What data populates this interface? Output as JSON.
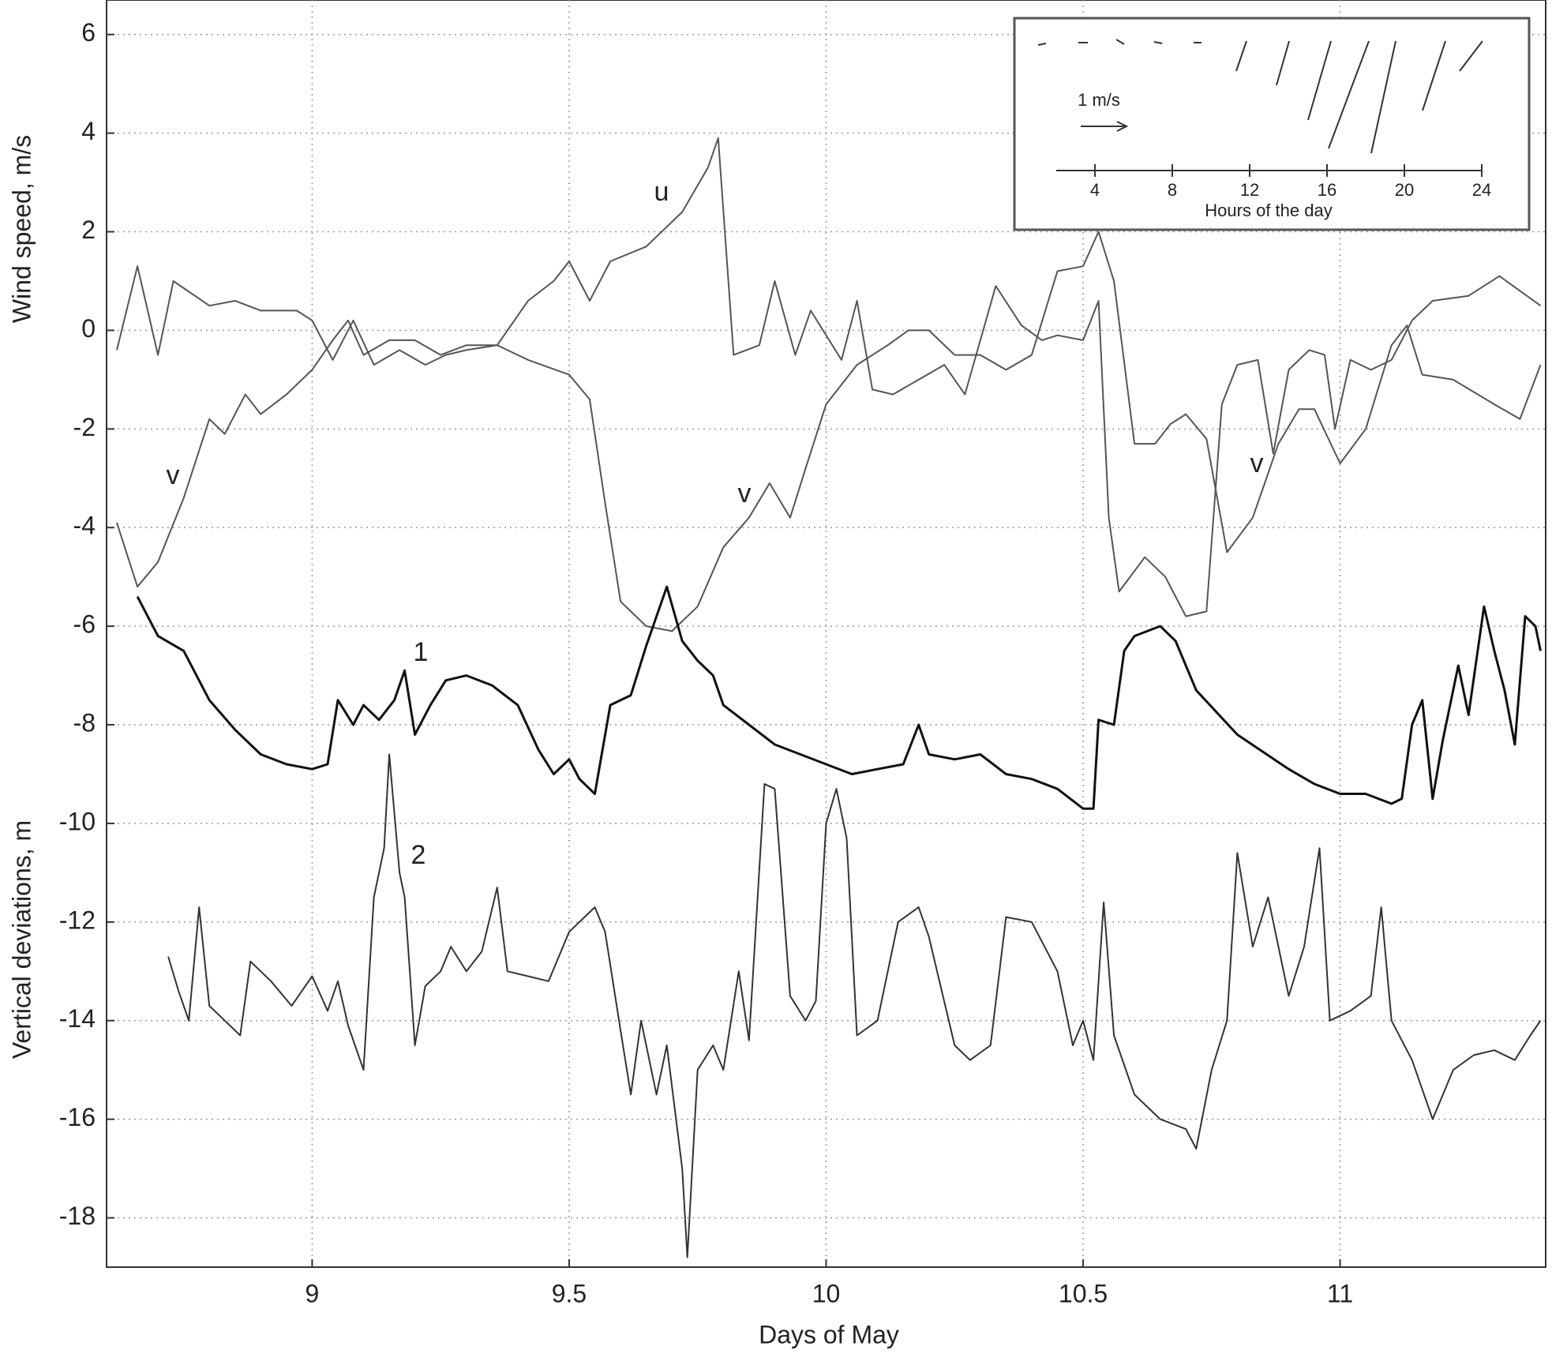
{
  "chart_data": {
    "type": "line",
    "xlabel": "Days of May",
    "ylabels": [
      "Wind speed, m/s",
      "Vertical deviations, m"
    ],
    "xlim": [
      8.6,
      11.4
    ],
    "ylim": [
      -19,
      6.7
    ],
    "xticks": [
      9,
      9.5,
      10,
      10.5,
      11
    ],
    "yticks": [
      6,
      4,
      2,
      0,
      -2,
      -4,
      -6,
      -8,
      -10,
      -12,
      -14,
      -16,
      -18
    ],
    "grid": true,
    "series": [
      {
        "name": "u",
        "color": "#555555",
        "x": [
          8.62,
          8.66,
          8.7,
          8.73,
          8.8,
          8.85,
          8.9,
          8.97,
          9.0,
          9.04,
          9.08,
          9.12,
          9.17,
          9.22,
          9.26,
          9.3,
          9.36,
          9.42,
          9.47,
          9.5,
          9.54,
          9.58,
          9.65,
          9.72,
          9.77,
          9.79,
          9.82,
          9.87,
          9.9,
          9.94,
          9.97,
          10.0,
          10.03,
          10.06,
          10.09,
          10.13,
          10.18,
          10.23,
          10.27,
          10.33,
          10.38,
          10.42,
          10.45,
          10.5,
          10.53,
          10.55,
          10.57,
          10.62,
          10.66,
          10.7,
          10.74,
          10.77,
          10.8,
          10.84,
          10.87,
          10.9,
          10.94,
          10.97,
          10.99,
          11.02,
          11.06,
          11.1,
          11.14,
          11.18,
          11.25,
          11.31,
          11.39
        ],
        "values": [
          -0.4,
          1.3,
          -0.5,
          1.0,
          0.5,
          0.6,
          0.4,
          0.4,
          0.2,
          -0.6,
          0.2,
          -0.7,
          -0.4,
          -0.7,
          -0.5,
          -0.4,
          -0.3,
          0.6,
          1.0,
          1.4,
          0.6,
          1.4,
          1.7,
          2.4,
          3.3,
          3.9,
          -0.5,
          -0.3,
          1.0,
          -0.5,
          0.4,
          -0.1,
          -0.6,
          0.6,
          -1.2,
          -1.3,
          -1.0,
          -0.7,
          -1.3,
          0.9,
          0.1,
          -0.2,
          -0.1,
          -0.2,
          0.6,
          -3.8,
          -5.3,
          -4.6,
          -5.0,
          -5.8,
          -5.7,
          -1.5,
          -0.7,
          -0.6,
          -2.5,
          -0.8,
          -0.4,
          -0.5,
          -2.0,
          -0.6,
          -0.8,
          -0.6,
          0.2,
          0.6,
          0.7,
          1.1,
          0.5
        ]
      },
      {
        "name": "v",
        "color": "#555555",
        "x": [
          8.62,
          8.66,
          8.7,
          8.75,
          8.8,
          8.83,
          8.87,
          8.9,
          8.95,
          9.0,
          9.04,
          9.07,
          9.1,
          9.15,
          9.2,
          9.25,
          9.3,
          9.36,
          9.42,
          9.5,
          9.54,
          9.57,
          9.6,
          9.65,
          9.7,
          9.75,
          9.8,
          9.85,
          9.89,
          9.93,
          9.96,
          10.0,
          10.06,
          10.12,
          10.16,
          10.2,
          10.25,
          10.3,
          10.35,
          10.4,
          10.45,
          10.5,
          10.53,
          10.56,
          10.6,
          10.64,
          10.67,
          10.7,
          10.74,
          10.78,
          10.83,
          10.88,
          10.92,
          10.95,
          11.0,
          11.05,
          11.1,
          11.13,
          11.16,
          11.22,
          11.3,
          11.35,
          11.39
        ],
        "values": [
          -3.9,
          -5.2,
          -4.7,
          -3.4,
          -1.8,
          -2.1,
          -1.3,
          -1.7,
          -1.3,
          -0.8,
          -0.2,
          0.2,
          -0.5,
          -0.2,
          -0.2,
          -0.5,
          -0.3,
          -0.3,
          -0.6,
          -0.9,
          -1.4,
          -3.5,
          -5.5,
          -6.0,
          -6.1,
          -5.6,
          -4.4,
          -3.8,
          -3.1,
          -3.8,
          -2.8,
          -1.5,
          -0.7,
          -0.3,
          0.0,
          0.0,
          -0.5,
          -0.5,
          -0.8,
          -0.5,
          1.2,
          1.3,
          2.0,
          1.0,
          -2.3,
          -2.3,
          -1.9,
          -1.7,
          -2.2,
          -4.5,
          -3.8,
          -2.3,
          -1.6,
          -1.6,
          -2.7,
          -2.0,
          -0.3,
          0.1,
          -0.9,
          -1.0,
          -1.5,
          -1.8,
          -0.7
        ]
      },
      {
        "name": "1",
        "color": "#111111",
        "x": [
          8.66,
          8.7,
          8.75,
          8.8,
          8.85,
          8.9,
          8.95,
          9.0,
          9.03,
          9.05,
          9.08,
          9.1,
          9.13,
          9.16,
          9.18,
          9.2,
          9.23,
          9.26,
          9.3,
          9.35,
          9.4,
          9.44,
          9.47,
          9.5,
          9.52,
          9.55,
          9.58,
          9.62,
          9.65,
          9.69,
          9.72,
          9.75,
          9.78,
          9.8,
          9.85,
          9.9,
          9.95,
          10.0,
          10.05,
          10.1,
          10.15,
          10.18,
          10.2,
          10.25,
          10.3,
          10.35,
          10.4,
          10.45,
          10.5,
          10.52,
          10.53,
          10.56,
          10.58,
          10.6,
          10.65,
          10.68,
          10.72,
          10.8,
          10.9,
          10.95,
          11.0,
          11.05,
          11.1,
          11.12,
          11.14,
          11.16,
          11.18,
          11.2,
          11.23,
          11.25,
          11.28,
          11.3,
          11.32,
          11.34,
          11.36,
          11.38,
          11.39
        ],
        "values": [
          -5.4,
          -6.2,
          -6.5,
          -7.5,
          -8.1,
          -8.6,
          -8.8,
          -8.9,
          -8.8,
          -7.5,
          -8.0,
          -7.6,
          -7.9,
          -7.5,
          -6.9,
          -8.2,
          -7.6,
          -7.1,
          -7.0,
          -7.2,
          -7.6,
          -8.5,
          -9.0,
          -8.7,
          -9.1,
          -9.4,
          -7.6,
          -7.4,
          -6.4,
          -5.2,
          -6.3,
          -6.7,
          -7.0,
          -7.6,
          -8.0,
          -8.4,
          -8.6,
          -8.8,
          -9.0,
          -8.9,
          -8.8,
          -8.0,
          -8.6,
          -8.7,
          -8.6,
          -9.0,
          -9.1,
          -9.3,
          -9.7,
          -9.7,
          -7.9,
          -8.0,
          -6.5,
          -6.2,
          -6.0,
          -6.3,
          -7.3,
          -8.2,
          -8.9,
          -9.2,
          -9.4,
          -9.4,
          -9.6,
          -9.5,
          -8.0,
          -7.5,
          -9.5,
          -8.3,
          -6.8,
          -7.8,
          -5.6,
          -6.5,
          -7.3,
          -8.4,
          -5.8,
          -6.0,
          -6.5
        ]
      },
      {
        "name": "2",
        "color": "#333333",
        "x": [
          8.72,
          8.74,
          8.76,
          8.78,
          8.8,
          8.83,
          8.86,
          8.88,
          8.92,
          8.96,
          9.0,
          9.03,
          9.05,
          9.07,
          9.1,
          9.12,
          9.14,
          9.15,
          9.17,
          9.18,
          9.2,
          9.22,
          9.25,
          9.27,
          9.3,
          9.33,
          9.36,
          9.38,
          9.42,
          9.46,
          9.5,
          9.55,
          9.57,
          9.6,
          9.62,
          9.64,
          9.67,
          9.69,
          9.72,
          9.73,
          9.75,
          9.78,
          9.8,
          9.83,
          9.85,
          9.88,
          9.9,
          9.93,
          9.96,
          9.98,
          10.0,
          10.02,
          10.04,
          10.06,
          10.1,
          10.14,
          10.18,
          10.2,
          10.25,
          10.28,
          10.32,
          10.35,
          10.4,
          10.45,
          10.48,
          10.5,
          10.52,
          10.54,
          10.56,
          10.6,
          10.65,
          10.7,
          10.72,
          10.75,
          10.78,
          10.8,
          10.83,
          10.86,
          10.9,
          10.93,
          10.96,
          10.98,
          11.02,
          11.06,
          11.08,
          11.1,
          11.14,
          11.18,
          11.22,
          11.26,
          11.3,
          11.34,
          11.37,
          11.39
        ],
        "values": [
          -12.7,
          -13.4,
          -14.0,
          -11.7,
          -13.7,
          -14.0,
          -14.3,
          -12.8,
          -13.2,
          -13.7,
          -13.1,
          -13.8,
          -13.2,
          -14.1,
          -15.0,
          -11.5,
          -10.5,
          -8.6,
          -11.0,
          -11.5,
          -14.5,
          -13.3,
          -13.0,
          -12.5,
          -13.0,
          -12.6,
          -11.3,
          -13.0,
          -13.1,
          -13.2,
          -12.2,
          -11.7,
          -12.2,
          -14.2,
          -15.5,
          -14.0,
          -15.5,
          -14.5,
          -17.0,
          -18.8,
          -15.0,
          -14.5,
          -15.0,
          -13.0,
          -14.4,
          -9.2,
          -9.3,
          -13.5,
          -14.0,
          -13.6,
          -10.0,
          -9.3,
          -10.3,
          -14.3,
          -14.0,
          -12.0,
          -11.7,
          -12.3,
          -14.5,
          -14.8,
          -14.5,
          -11.9,
          -12.0,
          -13.0,
          -14.5,
          -14.0,
          -14.8,
          -11.6,
          -14.3,
          -15.5,
          -16.0,
          -16.2,
          -16.6,
          -15.0,
          -14.0,
          -10.6,
          -12.5,
          -11.5,
          -13.5,
          -12.5,
          -10.5,
          -14.0,
          -13.8,
          -13.5,
          -11.7,
          -14.0,
          -14.8,
          -16.0,
          -15.0,
          -14.7,
          -14.6,
          -14.8,
          -14.3,
          -14.0
        ]
      }
    ],
    "inset": {
      "scale_label": "1 m/s",
      "xlabel": "Hours of the day",
      "xlim": [
        2,
        24
      ],
      "xticks": [
        4,
        8,
        12,
        16,
        20,
        24
      ]
    }
  }
}
